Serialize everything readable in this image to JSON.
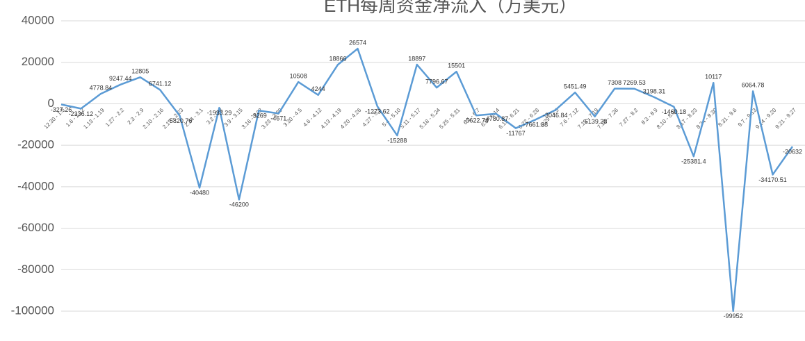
{
  "chart_data": {
    "type": "line",
    "title": "ETH每周资金净流入（万美元）",
    "categories": [
      "12.30 - 1.5",
      "1.6 - 1.12",
      "1.13 - 1.19",
      "1.27 - 2.2",
      "2.3 - 2.9",
      "2.10 - 2.16",
      "2.17 - 2.23",
      "2.24 - 3.1",
      "3.2 - 3.8",
      "3.9 - 3.15",
      "3.16 - 3.22",
      "3.23 - 3.29",
      "3.30 - 4.5",
      "4.6 - 4.12",
      "4.13 - 4.19",
      "4.20 - 4.26",
      "4.27 - 5.3",
      "5.4 - 5.10",
      "5.11 - 5.17",
      "5.18 - 5.24",
      "5.25 - 5.31",
      "6.1 - 6.7",
      "6.8 - 6.14",
      "6.15 - 6.21",
      "6.22 - 6.28",
      "6.29 - 7.5",
      "7.6 - 7.12",
      "7.13 - 7.19",
      "7.20 - 7.26",
      "7.27 - 8.2",
      "8.3 - 8.9",
      "8.10 - 8.16",
      "8.17 - 8.23",
      "8.24 - 8.30",
      "8.31 - 9.6",
      "9.7 - 9.13",
      "9.14 - 9.20",
      "9.21 - 9.27"
    ],
    "values": [
      -327.26,
      -2336.12,
      4778.84,
      9247.44,
      12805,
      6741.12,
      -5820.76,
      -40480,
      -1933.29,
      -46200,
      -3269,
      -4671,
      10508,
      4244,
      18866,
      26574,
      -1273.62,
      -15288,
      18897,
      7796.67,
      15501,
      -5622.74,
      -4780.87,
      -11767,
      -7661.38,
      -3046.84,
      5451.49,
      -6139.28,
      7308,
      7269.53,
      3198.31,
      -1460.18,
      -25381.4,
      10117,
      -99952,
      6064.78,
      -34170.51,
      -20632
    ],
    "color": "#5b9bd5",
    "ylim": [
      -100000,
      40000
    ],
    "yticks": [
      -100000,
      -80000,
      -60000,
      -40000,
      -20000,
      0,
      20000,
      40000
    ],
    "grid": true
  }
}
